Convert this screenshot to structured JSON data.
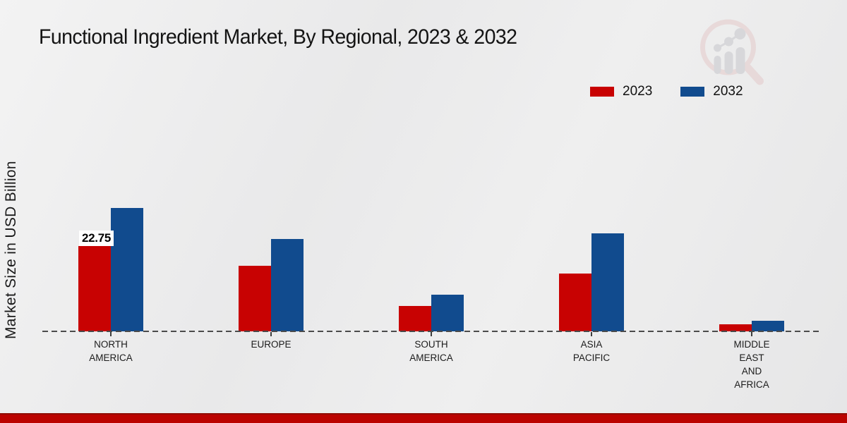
{
  "page": {
    "footer_bar_color": "#bb0300",
    "watermark_icon": "magnifier-bar-chart-logo",
    "background_color": "#ececec"
  },
  "chart_data": {
    "type": "bar",
    "title": "Functional Ingredient Market, By Regional, 2023 & 2032",
    "xlabel": "",
    "ylabel": "Market Size in USD Billion",
    "unit": "USD Billion",
    "ylim": [
      0,
      56
    ],
    "grid": false,
    "legend_position": "top-right",
    "baseline_style": "dashed",
    "categories": [
      "NORTH AMERICA",
      "EUROPE",
      "SOUTH AMERICA",
      "ASIA PACIFIC",
      "MIDDLE EAST AND AFRICA"
    ],
    "category_label_lines": [
      [
        "NORTH",
        "AMERICA"
      ],
      [
        "EUROPE"
      ],
      [
        "SOUTH",
        "AMERICA"
      ],
      [
        "ASIA",
        "PACIFIC"
      ],
      [
        "MIDDLE",
        "EAST",
        "AND",
        "AFRICA"
      ]
    ],
    "series": [
      {
        "name": "2023",
        "color": "#c80202",
        "values": [
          22.75,
          17.5,
          6.8,
          15.4,
          1.9
        ]
      },
      {
        "name": "2032",
        "color": "#114b8e",
        "values": [
          32.8,
          24.6,
          9.8,
          26.1,
          2.9
        ]
      }
    ],
    "annotations": [
      {
        "series_index": 0,
        "category_index": 0,
        "text": "22.75"
      }
    ]
  }
}
